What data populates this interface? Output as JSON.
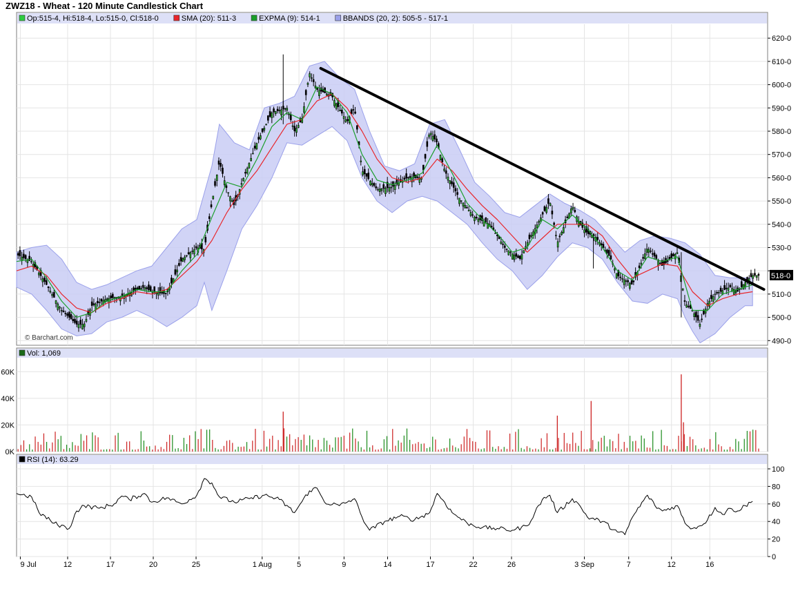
{
  "title": "ZWZ18 - Wheat - 120 Minute Candlestick Chart",
  "watermark": "© Barchart.com",
  "colors": {
    "background": "#ffffff",
    "panel_header": "#dde0f7",
    "band_fill": "#c9ccf5",
    "band_stroke": "#9aa0ea",
    "sma": "#e8262b",
    "expma": "#1a9e2a",
    "candle": "#000000",
    "vol_up": "#1a8a1a",
    "vol_down": "#cc2020",
    "trendline": "#000000",
    "rsi": "#000000",
    "grid": "#e4e4e4"
  },
  "legend": {
    "ohlc": {
      "label": "Op:515-4, Hi:518-4, Lo:515-0, Cl:518-0",
      "color": "#2ecc40"
    },
    "sma": {
      "label": "SMA (20): 511-3",
      "color": "#e8262b"
    },
    "expma": {
      "label": "EXPMA (9): 514-1",
      "color": "#1a9e2a"
    },
    "bbands": {
      "label": "BBANDS (20, 2): 505-5 - 517-1",
      "color": "#9aa0ea"
    }
  },
  "volume_legend": {
    "label": "Vol: 1,069",
    "color": "#1a6a1a"
  },
  "rsi_legend": {
    "label": "RSI (14): 63.29",
    "color": "#000000"
  },
  "last_price_label": "518-0",
  "chart_data": {
    "type": "candlestick",
    "x_tick_labels": [
      "9 Jul",
      "12",
      "17",
      "20",
      "25",
      "1 Aug",
      "5",
      "9",
      "14",
      "17",
      "22",
      "26",
      "3 Sep",
      "7",
      "12",
      "16"
    ],
    "price_axis": {
      "ticks": [
        490,
        500,
        510,
        520,
        530,
        540,
        550,
        560,
        570,
        580,
        590,
        600,
        610,
        620
      ],
      "tick_labels": [
        "490-0",
        "500-0",
        "510-0",
        "",
        "530-0",
        "540-0",
        "550-0",
        "560-0",
        "570-0",
        "580-0",
        "590-0",
        "600-0",
        "610-0",
        "620-0"
      ],
      "range": [
        488,
        626
      ]
    },
    "close_path": [
      [
        0,
        527
      ],
      [
        2,
        524
      ],
      [
        4,
        514
      ],
      [
        6,
        503
      ],
      [
        8,
        497
      ],
      [
        9,
        497
      ],
      [
        10,
        505
      ],
      [
        12,
        508
      ],
      [
        14,
        509
      ],
      [
        17,
        513
      ],
      [
        18,
        511
      ],
      [
        20,
        510
      ],
      [
        22,
        525
      ],
      [
        24,
        530
      ],
      [
        25,
        529
      ],
      [
        26,
        549
      ],
      [
        27,
        567
      ],
      [
        28,
        555
      ],
      [
        29,
        548
      ],
      [
        30,
        558
      ],
      [
        32,
        575
      ],
      [
        34,
        588
      ],
      [
        36,
        590
      ],
      [
        37,
        580
      ],
      [
        38,
        585
      ],
      [
        39,
        605
      ],
      [
        40,
        598
      ],
      [
        42,
        595
      ],
      [
        44,
        584
      ],
      [
        45,
        590
      ],
      [
        46,
        563
      ],
      [
        48,
        555
      ],
      [
        50,
        556
      ],
      [
        52,
        560
      ],
      [
        54,
        560
      ],
      [
        55,
        580
      ],
      [
        56,
        575
      ],
      [
        57,
        563
      ],
      [
        59,
        551
      ],
      [
        61,
        543
      ],
      [
        63,
        540
      ],
      [
        65,
        530
      ],
      [
        67,
        525
      ],
      [
        68,
        532
      ],
      [
        70,
        544
      ],
      [
        71,
        550
      ],
      [
        72,
        532
      ],
      [
        74,
        548
      ],
      [
        75,
        540
      ],
      [
        76,
        536
      ],
      [
        77,
        535
      ],
      [
        79,
        526
      ],
      [
        80,
        518
      ],
      [
        82,
        514
      ],
      [
        84,
        530
      ],
      [
        86,
        522
      ],
      [
        88,
        528
      ],
      [
        89,
        506
      ],
      [
        90,
        503
      ],
      [
        91,
        497
      ],
      [
        92,
        506
      ],
      [
        93,
        510
      ],
      [
        95,
        513
      ],
      [
        96,
        511
      ],
      [
        97,
        515
      ],
      [
        98,
        518
      ]
    ],
    "sma_20_path": [
      [
        0,
        520
      ],
      [
        2,
        522
      ],
      [
        4,
        518
      ],
      [
        6,
        510
      ],
      [
        8,
        504
      ],
      [
        10,
        502
      ],
      [
        12,
        506
      ],
      [
        14,
        508
      ],
      [
        16,
        511
      ],
      [
        18,
        510
      ],
      [
        20,
        512
      ],
      [
        22,
        518
      ],
      [
        24,
        524
      ],
      [
        26,
        533
      ],
      [
        28,
        545
      ],
      [
        30,
        555
      ],
      [
        32,
        563
      ],
      [
        34,
        573
      ],
      [
        36,
        583
      ],
      [
        38,
        585
      ],
      [
        40,
        593
      ],
      [
        42,
        596
      ],
      [
        44,
        590
      ],
      [
        46,
        580
      ],
      [
        48,
        568
      ],
      [
        50,
        560
      ],
      [
        52,
        558
      ],
      [
        54,
        560
      ],
      [
        56,
        568
      ],
      [
        58,
        563
      ],
      [
        60,
        555
      ],
      [
        62,
        548
      ],
      [
        64,
        542
      ],
      [
        66,
        535
      ],
      [
        68,
        528
      ],
      [
        70,
        534
      ],
      [
        72,
        540
      ],
      [
        74,
        540
      ],
      [
        76,
        540
      ],
      [
        78,
        535
      ],
      [
        80,
        525
      ],
      [
        82,
        517
      ],
      [
        84,
        520
      ],
      [
        86,
        523
      ],
      [
        88,
        522
      ],
      [
        90,
        511
      ],
      [
        92,
        505
      ],
      [
        94,
        508
      ],
      [
        96,
        510
      ],
      [
        98,
        511
      ]
    ],
    "expma_9_path": [
      [
        0,
        524
      ],
      [
        2,
        525
      ],
      [
        4,
        517
      ],
      [
        6,
        507
      ],
      [
        8,
        500
      ],
      [
        10,
        502
      ],
      [
        12,
        507
      ],
      [
        14,
        509
      ],
      [
        16,
        512
      ],
      [
        18,
        511
      ],
      [
        20,
        511
      ],
      [
        22,
        520
      ],
      [
        24,
        527
      ],
      [
        26,
        543
      ],
      [
        28,
        558
      ],
      [
        30,
        556
      ],
      [
        32,
        568
      ],
      [
        34,
        582
      ],
      [
        36,
        588
      ],
      [
        38,
        585
      ],
      [
        40,
        599
      ],
      [
        42,
        596
      ],
      [
        44,
        588
      ],
      [
        46,
        570
      ],
      [
        48,
        559
      ],
      [
        50,
        557
      ],
      [
        52,
        559
      ],
      [
        54,
        562
      ],
      [
        56,
        574
      ],
      [
        58,
        562
      ],
      [
        60,
        549
      ],
      [
        62,
        542
      ],
      [
        64,
        536
      ],
      [
        66,
        528
      ],
      [
        68,
        530
      ],
      [
        70,
        542
      ],
      [
        72,
        538
      ],
      [
        74,
        544
      ],
      [
        76,
        538
      ],
      [
        78,
        530
      ],
      [
        80,
        520
      ],
      [
        82,
        516
      ],
      [
        84,
        526
      ],
      [
        86,
        524
      ],
      [
        88,
        526
      ],
      [
        90,
        503
      ],
      [
        92,
        503
      ],
      [
        94,
        510
      ],
      [
        96,
        512
      ],
      [
        98,
        514
      ]
    ],
    "bband_upper_path": [
      [
        0,
        528
      ],
      [
        2,
        530
      ],
      [
        4,
        531
      ],
      [
        6,
        525
      ],
      [
        8,
        515
      ],
      [
        10,
        512
      ],
      [
        12,
        514
      ],
      [
        14,
        517
      ],
      [
        16,
        520
      ],
      [
        18,
        522
      ],
      [
        20,
        530
      ],
      [
        22,
        538
      ],
      [
        24,
        542
      ],
      [
        26,
        565
      ],
      [
        27,
        583
      ],
      [
        29,
        575
      ],
      [
        31,
        572
      ],
      [
        33,
        590
      ],
      [
        35,
        592
      ],
      [
        37,
        595
      ],
      [
        39,
        608
      ],
      [
        41,
        610
      ],
      [
        43,
        603
      ],
      [
        45,
        598
      ],
      [
        47,
        580
      ],
      [
        49,
        565
      ],
      [
        51,
        563
      ],
      [
        53,
        566
      ],
      [
        55,
        583
      ],
      [
        57,
        585
      ],
      [
        59,
        572
      ],
      [
        61,
        558
      ],
      [
        63,
        552
      ],
      [
        65,
        545
      ],
      [
        67,
        543
      ],
      [
        69,
        548
      ],
      [
        71,
        553
      ],
      [
        73,
        549
      ],
      [
        75,
        546
      ],
      [
        77,
        542
      ],
      [
        79,
        535
      ],
      [
        81,
        528
      ],
      [
        83,
        533
      ],
      [
        85,
        535
      ],
      [
        87,
        534
      ],
      [
        89,
        532
      ],
      [
        91,
        527
      ],
      [
        93,
        518
      ],
      [
        95,
        517
      ],
      [
        98,
        517
      ]
    ],
    "bband_lower_path": [
      [
        0,
        513
      ],
      [
        2,
        510
      ],
      [
        4,
        503
      ],
      [
        6,
        495
      ],
      [
        8,
        492
      ],
      [
        10,
        493
      ],
      [
        12,
        498
      ],
      [
        14,
        500
      ],
      [
        16,
        503
      ],
      [
        18,
        500
      ],
      [
        20,
        496
      ],
      [
        22,
        500
      ],
      [
        24,
        505
      ],
      [
        25,
        515
      ],
      [
        26,
        503
      ],
      [
        28,
        520
      ],
      [
        30,
        538
      ],
      [
        32,
        548
      ],
      [
        34,
        560
      ],
      [
        36,
        575
      ],
      [
        38,
        574
      ],
      [
        40,
        578
      ],
      [
        42,
        582
      ],
      [
        44,
        576
      ],
      [
        46,
        560
      ],
      [
        48,
        550
      ],
      [
        50,
        545
      ],
      [
        52,
        550
      ],
      [
        54,
        552
      ],
      [
        56,
        550
      ],
      [
        58,
        545
      ],
      [
        60,
        540
      ],
      [
        62,
        532
      ],
      [
        64,
        525
      ],
      [
        66,
        520
      ],
      [
        68,
        512
      ],
      [
        70,
        518
      ],
      [
        72,
        526
      ],
      [
        74,
        532
      ],
      [
        76,
        530
      ],
      [
        78,
        525
      ],
      [
        80,
        515
      ],
      [
        82,
        507
      ],
      [
        84,
        506
      ],
      [
        86,
        510
      ],
      [
        88,
        508
      ],
      [
        89,
        500
      ],
      [
        90,
        494
      ],
      [
        91,
        489
      ],
      [
        93,
        493
      ],
      [
        95,
        500
      ],
      [
        97,
        505
      ],
      [
        98,
        505
      ]
    ],
    "trendline": {
      "from": [
        40.5,
        607
      ],
      "to": [
        99.5,
        512
      ]
    },
    "volume_axis": {
      "ticks": [
        0,
        20000,
        40000,
        60000
      ],
      "tick_labels": [
        "0K",
        "20K",
        "40K",
        "60K"
      ],
      "range": [
        0,
        70000
      ]
    },
    "volume_spikes": [
      {
        "x": 35.5,
        "value": 30000
      },
      {
        "x": 72.0,
        "value": 27000
      },
      {
        "x": 76.5,
        "value": 38000
      },
      {
        "x": 88.5,
        "value": 58000
      },
      {
        "x": 88.8,
        "value": 22000
      }
    ],
    "rsi_axis": {
      "ticks": [
        0,
        20,
        40,
        60,
        80,
        100
      ],
      "tick_labels": [
        "0",
        "20",
        "40",
        "60",
        "80",
        "100"
      ],
      "range": [
        0,
        100
      ]
    },
    "rsi_path": [
      [
        0,
        72
      ],
      [
        2,
        68
      ],
      [
        3,
        50
      ],
      [
        5,
        38
      ],
      [
        7,
        32
      ],
      [
        8,
        52
      ],
      [
        9,
        58
      ],
      [
        11,
        55
      ],
      [
        13,
        60
      ],
      [
        14,
        69
      ],
      [
        15,
        65
      ],
      [
        17,
        72
      ],
      [
        18,
        62
      ],
      [
        20,
        67
      ],
      [
        22,
        60
      ],
      [
        24,
        70
      ],
      [
        25,
        89
      ],
      [
        26,
        84
      ],
      [
        27,
        68
      ],
      [
        29,
        62
      ],
      [
        31,
        66
      ],
      [
        33,
        70
      ],
      [
        35,
        65
      ],
      [
        37,
        50
      ],
      [
        39,
        75
      ],
      [
        40,
        78
      ],
      [
        41,
        62
      ],
      [
        43,
        58
      ],
      [
        45,
        66
      ],
      [
        46,
        45
      ],
      [
        47,
        30
      ],
      [
        49,
        40
      ],
      [
        51,
        46
      ],
      [
        53,
        42
      ],
      [
        55,
        50
      ],
      [
        56,
        72
      ],
      [
        57,
        62
      ],
      [
        58,
        50
      ],
      [
        60,
        38
      ],
      [
        62,
        33
      ],
      [
        64,
        32
      ],
      [
        66,
        30
      ],
      [
        68,
        35
      ],
      [
        70,
        65
      ],
      [
        71,
        70
      ],
      [
        72,
        50
      ],
      [
        74,
        66
      ],
      [
        75,
        58
      ],
      [
        76,
        45
      ],
      [
        78,
        40
      ],
      [
        80,
        28
      ],
      [
        81,
        25
      ],
      [
        82,
        45
      ],
      [
        84,
        70
      ],
      [
        85,
        58
      ],
      [
        86,
        52
      ],
      [
        88,
        58
      ],
      [
        89,
        38
      ],
      [
        90,
        32
      ],
      [
        91,
        35
      ],
      [
        92,
        42
      ],
      [
        93,
        56
      ],
      [
        94,
        48
      ],
      [
        95,
        55
      ],
      [
        96,
        52
      ],
      [
        97,
        58
      ],
      [
        98,
        63
      ]
    ],
    "grid": true
  }
}
